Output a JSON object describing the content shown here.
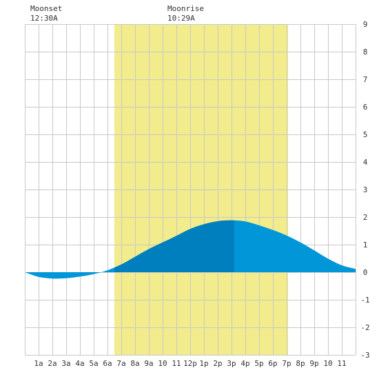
{
  "annotations": {
    "moonset_label": "Moonset",
    "moonset_time": "12:30A",
    "moonrise_label": "Moonrise",
    "moonrise_time": "10:29A"
  },
  "colors": {
    "background": "#ffffff",
    "grid": "#c8c8c8",
    "daylight": "#f2ec8c",
    "tide_light": "#0096d8",
    "tide_dark": "#007fbf",
    "text": "#333333"
  },
  "chart_data": {
    "type": "area",
    "title": "",
    "xlabel": "",
    "ylabel": "",
    "x_tick_labels": [
      "1a",
      "2a",
      "3a",
      "4a",
      "5a",
      "6a",
      "7a",
      "8a",
      "9a",
      "10",
      "11",
      "12p",
      "1p",
      "2p",
      "3p",
      "4p",
      "5p",
      "6p",
      "7p",
      "8p",
      "9p",
      "10",
      "11"
    ],
    "y_ticks": [
      -3,
      -2,
      -1,
      0,
      1,
      2,
      3,
      4,
      5,
      6,
      7,
      8,
      9
    ],
    "xlim": [
      0,
      24
    ],
    "ylim": [
      -3,
      9
    ],
    "grid": true,
    "daylight_band_hours": [
      6.5,
      19.1
    ],
    "highlight_band_hours": [
      6.5,
      15.2
    ],
    "series": [
      {
        "x": [
          0,
          1,
          2,
          3,
          4,
          5,
          6,
          7,
          8,
          9,
          10,
          11,
          12,
          13,
          14,
          15,
          16,
          17,
          18,
          19,
          20,
          21,
          22,
          23,
          24
        ],
        "values": [
          0.0,
          -0.17,
          -0.23,
          -0.22,
          -0.16,
          -0.07,
          0.07,
          0.28,
          0.56,
          0.84,
          1.08,
          1.32,
          1.57,
          1.74,
          1.85,
          1.88,
          1.84,
          1.7,
          1.53,
          1.33,
          1.08,
          0.79,
          0.49,
          0.25,
          0.12
        ]
      }
    ]
  }
}
